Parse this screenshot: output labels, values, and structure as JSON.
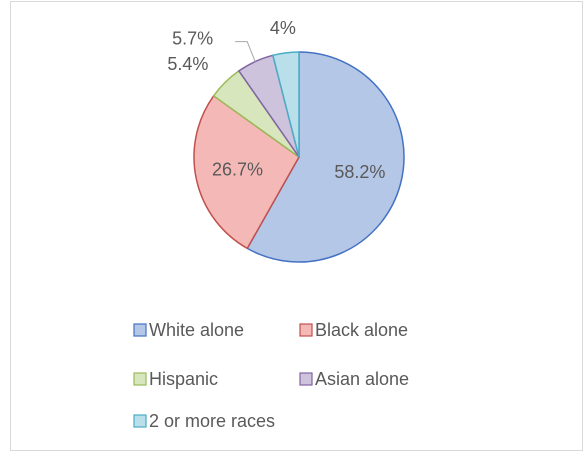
{
  "chart_data": {
    "type": "pie",
    "categories": [
      "White alone",
      "Black alone",
      "Hispanic",
      "Asian alone",
      "2 or more races"
    ],
    "values": [
      58.2,
      26.7,
      5.4,
      5.7,
      4
    ],
    "value_labels": [
      "58.2%",
      "26.7%",
      "5.4%",
      "5.7%",
      "4%"
    ],
    "colors": [
      "#b4c7e7",
      "#f4b9b7",
      "#d7e6bd",
      "#cdc3dc",
      "#b9e0ea"
    ],
    "edgecolors": [
      "#4472c4",
      "#c0504d",
      "#9bbb59",
      "#8064a2",
      "#4bacc6"
    ],
    "legend": "bottom"
  }
}
